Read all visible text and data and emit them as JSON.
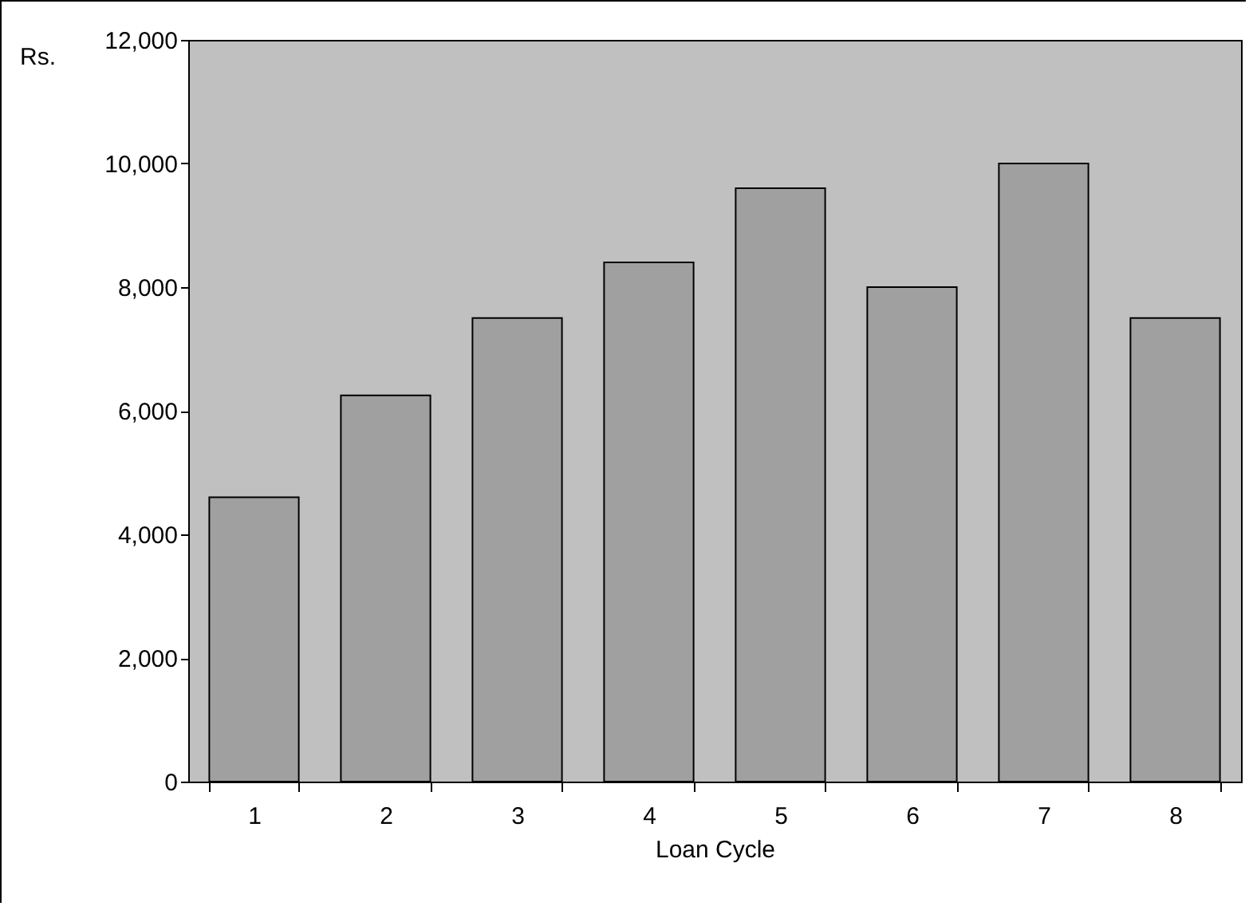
{
  "chart_data": {
    "type": "bar",
    "xlabel": "Loan Cycle",
    "ylabel": "Rs.",
    "categories": [
      "1",
      "2",
      "3",
      "4",
      "5",
      "6",
      "7",
      "8"
    ],
    "values": [
      4600,
      6250,
      7500,
      8400,
      9600,
      8000,
      10000,
      7500
    ],
    "color": "#a0a0a0",
    "ylim": [
      0,
      12000
    ],
    "yticks": [
      {
        "value": 0,
        "label": "0"
      },
      {
        "value": 2000,
        "label": "2,000"
      },
      {
        "value": 4000,
        "label": "4,000"
      },
      {
        "value": 6000,
        "label": "6,000"
      },
      {
        "value": 8000,
        "label": "8,000"
      },
      {
        "value": 10000,
        "label": "10,000"
      },
      {
        "value": 12000,
        "label": "12,000"
      }
    ],
    "grid": false
  }
}
